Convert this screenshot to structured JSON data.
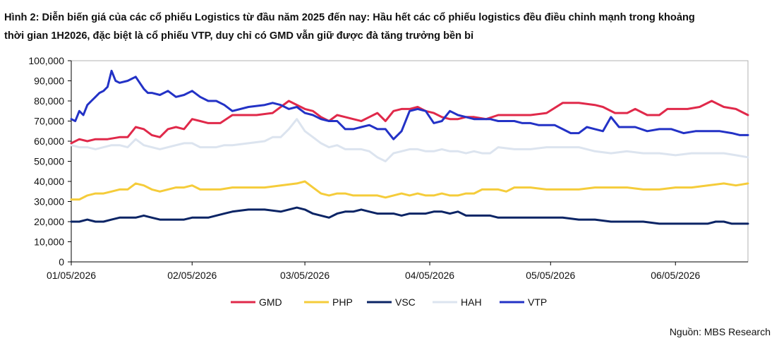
{
  "figure": {
    "title_line1": "Hình 2: Diễn biến giá của các cổ phiếu Logistics từ đầu năm 2025 đến nay: Hầu hết các cổ phiếu logistics đều điều chỉnh mạnh trong khoảng",
    "title_line2": "thời gian 1H2026, đặc biệt là cổ phiếu VTP, duy chỉ có GMD vẫn giữ được đà tăng trưởng bền bỉ",
    "source": "Nguồn: MBS Research"
  },
  "chart_data": {
    "type": "line",
    "title": "",
    "xlabel": "",
    "ylabel": "",
    "ylim": [
      0,
      100000
    ],
    "yticks": [
      0,
      10000,
      20000,
      30000,
      40000,
      50000,
      60000,
      70000,
      80000,
      90000,
      100000
    ],
    "ytick_labels": [
      "0",
      "10,000",
      "20,000",
      "30,000",
      "40,000",
      "50,000",
      "60,000",
      "70,000",
      "80,000",
      "90,000",
      "100,000"
    ],
    "xlim": [
      0,
      168
    ],
    "xticks": [
      0,
      30,
      58,
      89,
      119,
      150
    ],
    "xtick_labels": [
      "01/05/2026",
      "02/05/2026",
      "03/05/2026",
      "04/05/2026",
      "05/05/2026",
      "06/05/2026"
    ],
    "grid": false,
    "legend_position": "bottom",
    "series": [
      {
        "name": "GMD",
        "color": "#e0294a",
        "x": [
          0,
          2,
          4,
          6,
          9,
          12,
          14,
          16,
          18,
          20,
          22,
          24,
          26,
          28,
          30,
          32,
          34,
          37,
          40,
          43,
          46,
          50,
          54,
          58,
          60,
          62,
          64,
          66,
          68,
          70,
          72,
          74,
          76,
          78,
          80,
          82,
          84,
          86,
          88,
          90,
          92,
          94,
          96,
          98,
          100,
          103,
          106,
          110,
          114,
          118,
          122,
          126,
          130,
          132,
          135,
          138,
          140,
          143,
          146,
          148,
          150,
          153,
          156,
          159,
          162,
          165,
          168
        ],
        "values": [
          59000,
          61000,
          60000,
          61000,
          61000,
          62000,
          62000,
          67000,
          66000,
          63000,
          62000,
          66000,
          67000,
          66000,
          71000,
          70000,
          69000,
          69000,
          73000,
          73000,
          73000,
          74000,
          80000,
          76000,
          75000,
          72000,
          70000,
          73000,
          72000,
          71000,
          70000,
          72000,
          74000,
          70000,
          75000,
          76000,
          76000,
          77000,
          75000,
          74000,
          72000,
          71000,
          71000,
          72000,
          72000,
          71000,
          73000,
          73000,
          73000,
          74000,
          79000,
          79000,
          78000,
          77000,
          74000,
          74000,
          76000,
          73000,
          73000,
          76000,
          76000,
          76000,
          77000,
          80000,
          77000,
          76000,
          73000
        ]
      },
      {
        "name": "PHP",
        "color": "#f5cc3a",
        "x": [
          0,
          2,
          4,
          6,
          8,
          10,
          12,
          14,
          16,
          18,
          20,
          22,
          24,
          26,
          28,
          30,
          32,
          34,
          37,
          40,
          44,
          48,
          52,
          56,
          58,
          60,
          62,
          64,
          66,
          68,
          70,
          72,
          74,
          76,
          78,
          80,
          82,
          84,
          86,
          88,
          90,
          92,
          94,
          96,
          98,
          100,
          102,
          104,
          106,
          108,
          110,
          114,
          118,
          122,
          126,
          130,
          134,
          138,
          142,
          146,
          150,
          154,
          158,
          162,
          165,
          168
        ],
        "values": [
          31000,
          31000,
          33000,
          34000,
          34000,
          35000,
          36000,
          36000,
          39000,
          38000,
          36000,
          35000,
          36000,
          37000,
          37000,
          38000,
          36000,
          36000,
          36000,
          37000,
          37000,
          37000,
          38000,
          39000,
          40000,
          37000,
          34000,
          33000,
          34000,
          34000,
          33000,
          33000,
          33000,
          33000,
          32000,
          33000,
          34000,
          33000,
          34000,
          33000,
          33000,
          34000,
          33000,
          33000,
          34000,
          34000,
          36000,
          36000,
          36000,
          35000,
          37000,
          37000,
          36000,
          36000,
          36000,
          37000,
          37000,
          37000,
          36000,
          36000,
          37000,
          37000,
          38000,
          39000,
          38000,
          39000
        ]
      },
      {
        "name": "VSC",
        "color": "#0b2465",
        "x": [
          0,
          2,
          4,
          6,
          8,
          10,
          12,
          14,
          16,
          18,
          20,
          22,
          24,
          26,
          28,
          30,
          32,
          34,
          36,
          38,
          40,
          44,
          48,
          52,
          56,
          58,
          60,
          62,
          64,
          66,
          68,
          70,
          72,
          74,
          76,
          78,
          80,
          82,
          84,
          86,
          88,
          90,
          92,
          94,
          96,
          98,
          100,
          102,
          104,
          106,
          110,
          114,
          118,
          122,
          126,
          130,
          134,
          138,
          142,
          146,
          150,
          154,
          158,
          160,
          162,
          164,
          166,
          168
        ],
        "values": [
          20000,
          20000,
          21000,
          20000,
          20000,
          21000,
          22000,
          22000,
          22000,
          23000,
          22000,
          21000,
          21000,
          21000,
          21000,
          22000,
          22000,
          22000,
          23000,
          24000,
          25000,
          26000,
          26000,
          25000,
          27000,
          26000,
          24000,
          23000,
          22000,
          24000,
          25000,
          25000,
          26000,
          25000,
          24000,
          24000,
          24000,
          23000,
          24000,
          24000,
          24000,
          25000,
          25000,
          24000,
          25000,
          23000,
          23000,
          23000,
          23000,
          22000,
          22000,
          22000,
          22000,
          22000,
          21000,
          21000,
          20000,
          20000,
          20000,
          19000,
          19000,
          19000,
          19000,
          20000,
          20000,
          19000,
          19000,
          19000
        ]
      },
      {
        "name": "HAH",
        "color": "#dce4ef",
        "x": [
          0,
          2,
          4,
          6,
          8,
          10,
          12,
          14,
          16,
          18,
          20,
          22,
          24,
          26,
          28,
          30,
          32,
          34,
          36,
          38,
          40,
          44,
          48,
          50,
          52,
          54,
          56,
          58,
          60,
          62,
          64,
          66,
          68,
          70,
          72,
          74,
          76,
          78,
          80,
          82,
          84,
          86,
          88,
          90,
          92,
          94,
          96,
          98,
          100,
          102,
          104,
          106,
          110,
          114,
          118,
          122,
          126,
          130,
          134,
          138,
          142,
          146,
          150,
          154,
          158,
          162,
          165,
          168
        ],
        "values": [
          58000,
          57000,
          57000,
          56000,
          57000,
          58000,
          58000,
          57000,
          61000,
          58000,
          57000,
          56000,
          57000,
          58000,
          59000,
          59000,
          57000,
          57000,
          57000,
          58000,
          58000,
          59000,
          60000,
          62000,
          62000,
          66000,
          71000,
          65000,
          62000,
          59000,
          57000,
          58000,
          56000,
          56000,
          56000,
          55000,
          52000,
          50000,
          54000,
          55000,
          56000,
          56000,
          55000,
          55000,
          56000,
          55000,
          55000,
          54000,
          55000,
          54000,
          54000,
          57000,
          56000,
          56000,
          57000,
          57000,
          57000,
          55000,
          54000,
          55000,
          54000,
          54000,
          53000,
          54000,
          54000,
          54000,
          53000,
          52000
        ]
      },
      {
        "name": "VTP",
        "color": "#2332c6",
        "x": [
          0,
          1,
          2,
          3,
          4,
          5,
          6,
          7,
          8,
          9,
          10,
          11,
          12,
          14,
          16,
          17,
          18,
          19,
          20,
          22,
          24,
          26,
          28,
          30,
          32,
          34,
          36,
          38,
          40,
          44,
          48,
          50,
          52,
          54,
          56,
          58,
          60,
          62,
          64,
          66,
          68,
          70,
          72,
          74,
          76,
          78,
          80,
          82,
          84,
          86,
          88,
          90,
          92,
          94,
          96,
          98,
          100,
          102,
          104,
          106,
          108,
          110,
          112,
          114,
          116,
          118,
          120,
          122,
          124,
          126,
          128,
          130,
          132,
          134,
          136,
          138,
          140,
          143,
          146,
          149,
          152,
          155,
          158,
          161,
          164,
          166,
          168
        ],
        "values": [
          71000,
          70000,
          75000,
          73000,
          78000,
          80000,
          82000,
          84000,
          85000,
          87000,
          95000,
          90000,
          89000,
          90000,
          92000,
          89000,
          86000,
          84000,
          84000,
          83000,
          85000,
          82000,
          83000,
          85000,
          82000,
          80000,
          80000,
          78000,
          75000,
          77000,
          78000,
          79000,
          78000,
          76000,
          77000,
          74000,
          73000,
          71000,
          70000,
          70000,
          66000,
          66000,
          67000,
          68000,
          66000,
          66000,
          61000,
          65000,
          75000,
          76000,
          75000,
          69000,
          70000,
          75000,
          73000,
          72000,
          71000,
          71000,
          71000,
          70000,
          70000,
          70000,
          69000,
          69000,
          68000,
          68000,
          68000,
          66000,
          64000,
          64000,
          67000,
          66000,
          65000,
          72000,
          67000,
          67000,
          67000,
          65000,
          66000,
          66000,
          64000,
          65000,
          65000,
          65000,
          64000,
          63000,
          63000
        ]
      }
    ]
  }
}
